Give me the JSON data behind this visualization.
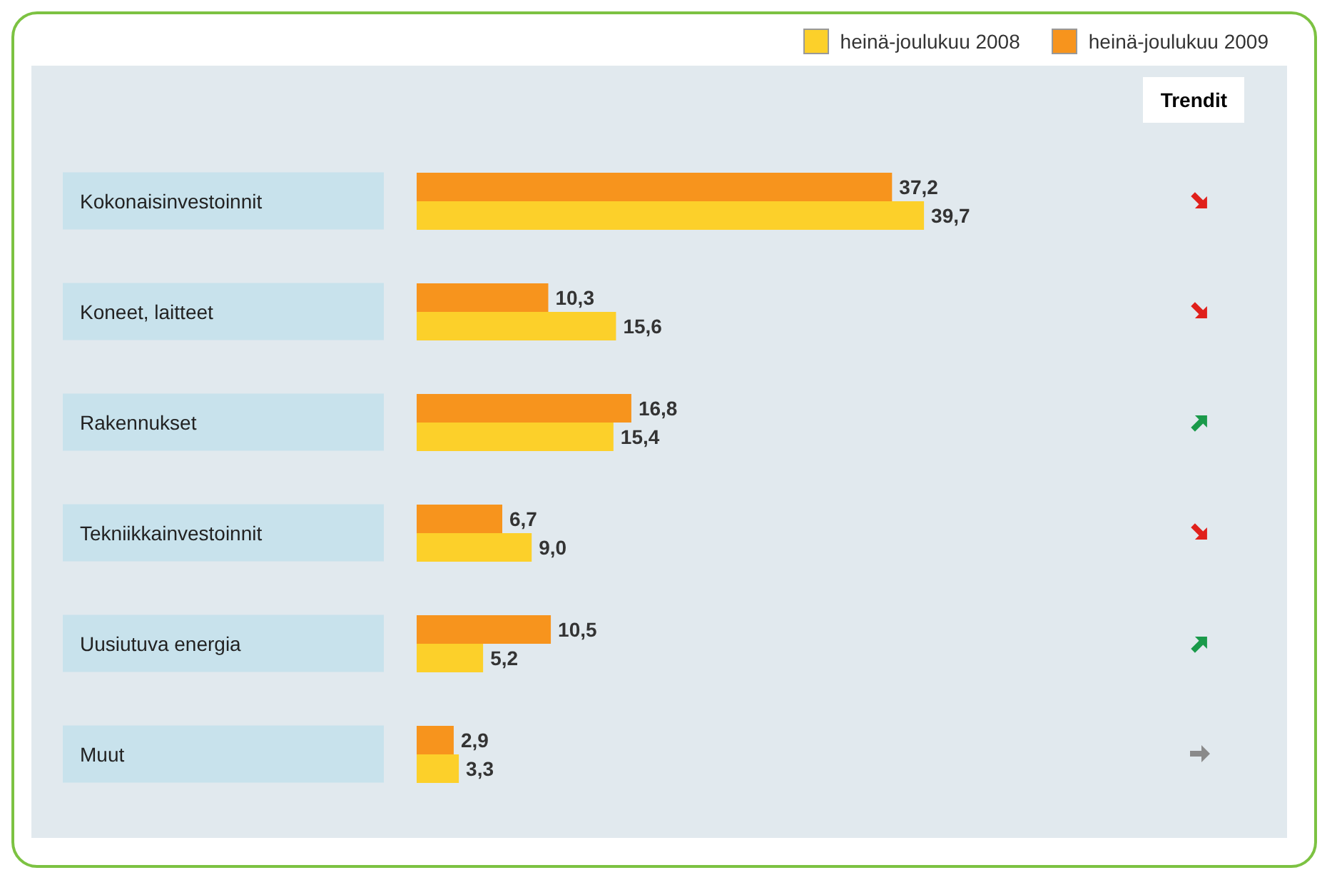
{
  "chart_data": {
    "type": "bar",
    "orientation": "horizontal",
    "categories": [
      "Kokonaisinvestoinnit",
      "Koneet, laitteet",
      "Rakennukset",
      "Tekniikkainvestoinnit",
      "Uusiutuva energia",
      "Muut"
    ],
    "series": [
      {
        "name": "heinä-joulukuu 2009",
        "color": "#f7941d",
        "values": [
          37.2,
          10.3,
          16.8,
          6.7,
          10.5,
          2.9
        ],
        "value_labels": [
          "37,2",
          "10,3",
          "16,8",
          "6,7",
          "10,5",
          "2,9"
        ]
      },
      {
        "name": "heinä-joulukuu 2008",
        "color": "#fcd02a",
        "values": [
          39.7,
          15.6,
          15.4,
          9.0,
          5.2,
          3.3
        ],
        "value_labels": [
          "39,7",
          "15,6",
          "15,4",
          "9,0",
          "5,2",
          "3,3"
        ]
      }
    ],
    "legend": "top right",
    "annotations": [
      "Trendit"
    ]
  }
}
